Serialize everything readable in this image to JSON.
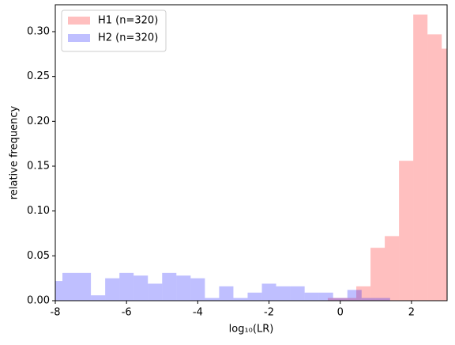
{
  "chart_data": {
    "type": "histogram",
    "xlabel": "log₁₀(LR)",
    "ylabel": "relative frequency",
    "xlim": [
      -8,
      3
    ],
    "ylim": [
      0,
      0.33
    ],
    "xticks": [
      -8,
      -6,
      -4,
      -2,
      0,
      2
    ],
    "yticks": [
      {
        "value": 0,
        "label": "0.00"
      },
      {
        "value": 0.05,
        "label": "0.05"
      },
      {
        "value": 0.1,
        "label": "0.10"
      },
      {
        "value": 0.15,
        "label": "0.15"
      },
      {
        "value": 0.2,
        "label": "0.20"
      },
      {
        "value": 0.25,
        "label": "0.25"
      },
      {
        "value": 0.3,
        "label": "0.30"
      }
    ],
    "legend": "upper left",
    "alpha": 0.25,
    "series": [
      {
        "name": "H1 (n=320)",
        "color": "#ff0000",
        "bins": [
          -0.35,
          0.05,
          0.45,
          0.85,
          1.25,
          1.65,
          2.05,
          2.45,
          2.85,
          3.25
        ],
        "values": [
          0.003,
          0.003,
          0.016,
          0.059,
          0.072,
          0.156,
          0.319,
          0.297,
          0.281
        ]
      },
      {
        "name": "H2 (n=320)",
        "color": "#0000ff",
        "bins": [
          -8.2,
          -7.8,
          -7.4,
          -7.0,
          -6.6,
          -6.2,
          -5.8,
          -5.4,
          -5.0,
          -4.6,
          -4.2,
          -3.8,
          -3.4,
          -3.0,
          -2.6,
          -2.2,
          -1.8,
          -1.4,
          -1.0,
          -0.6,
          -0.2,
          0.2,
          0.6,
          1.0,
          1.4
        ],
        "values": [
          0.022,
          0.031,
          0.031,
          0.006,
          0.025,
          0.031,
          0.028,
          0.019,
          0.031,
          0.028,
          0.025,
          0.003,
          0.016,
          0.003,
          0.009,
          0.019,
          0.016,
          0.016,
          0.009,
          0.009,
          0.003,
          0.012,
          0.003,
          0.003
        ]
      }
    ]
  }
}
